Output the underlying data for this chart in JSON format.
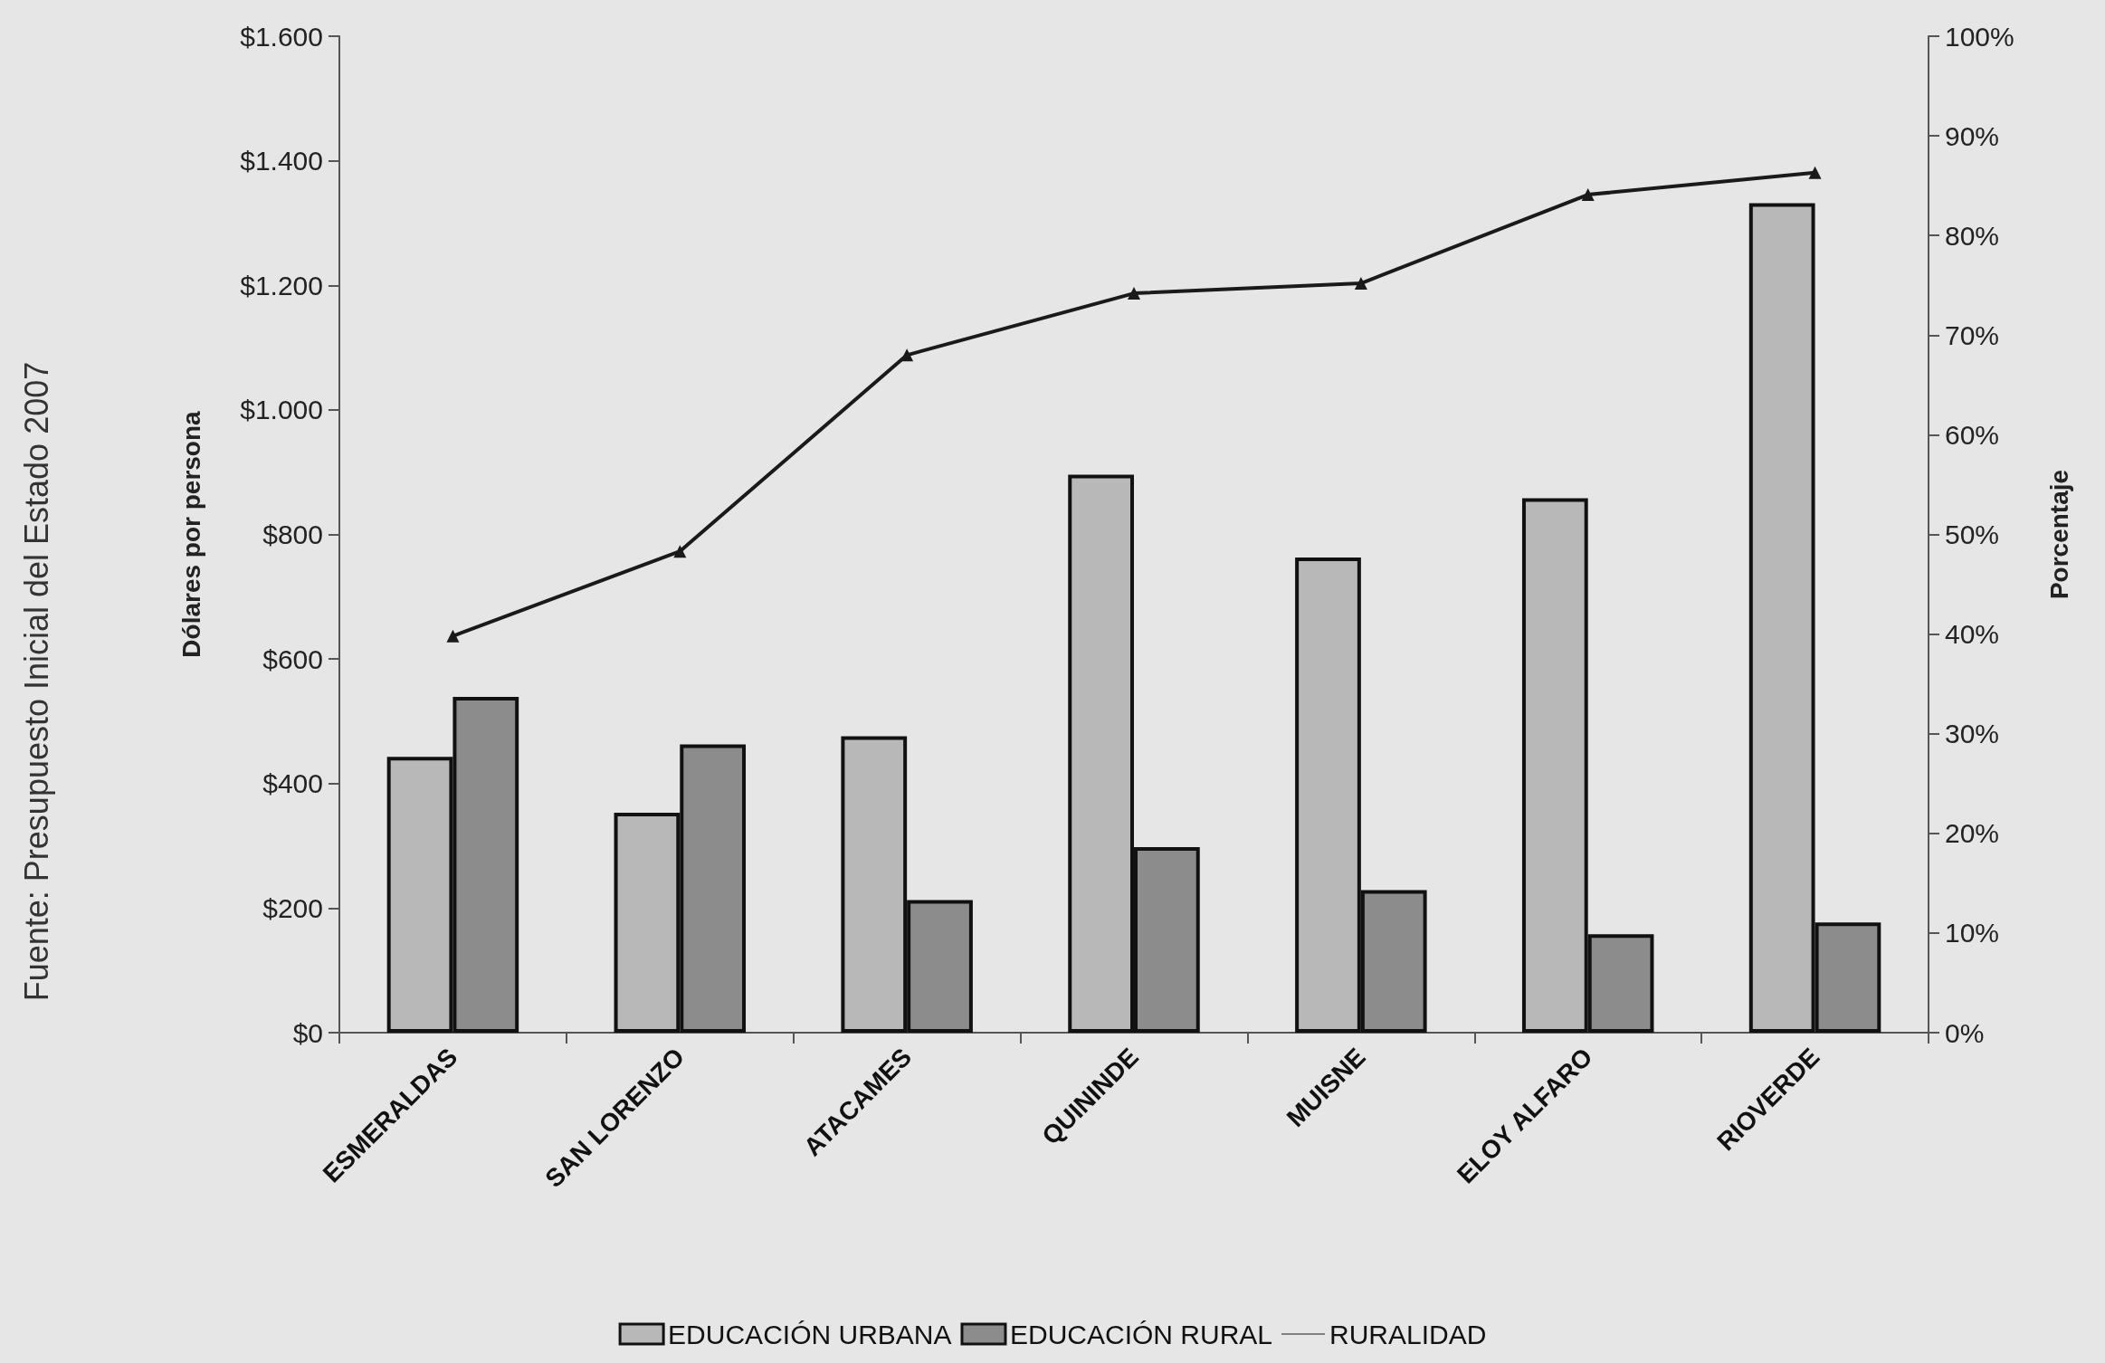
{
  "chart_data": {
    "type": "bar",
    "categories": [
      "ESMERALDAS",
      "SAN LORENZO",
      "ATACAMES",
      "QUININDE",
      "MUISNE",
      "ELOY ALFARO",
      "RIOVERDE"
    ],
    "series": [
      {
        "name": "EDUCACIÓN URBANA",
        "color": "#b8b8b8",
        "values": [
          443,
          353,
          476,
          896,
          763,
          858,
          1332
        ]
      },
      {
        "name": "EDUCACIÓN RURAL",
        "color": "#8c8c8c",
        "values": [
          539,
          463,
          213,
          298,
          229,
          158,
          177
        ]
      },
      {
        "name": "RURALIDAD",
        "type": "line",
        "axis": "y2",
        "color": "#1a1a1a",
        "marker": "triangle",
        "values": [
          39.8,
          48.3,
          68.0,
          74.2,
          75.2,
          84.1,
          86.3
        ]
      }
    ],
    "ylabel": "Dólares por persona",
    "y2label": "Porcentaje",
    "ylim": [
      0,
      1600
    ],
    "yticks": [
      {
        "value": 0,
        "label": "$0"
      },
      {
        "value": 200,
        "label": "$200"
      },
      {
        "value": 400,
        "label": "$400"
      },
      {
        "value": 600,
        "label": "$600"
      },
      {
        "value": 800,
        "label": "$800"
      },
      {
        "value": 1000,
        "label": "$1.000"
      },
      {
        "value": 1200,
        "label": "$1.200"
      },
      {
        "value": 1400,
        "label": "$1.400"
      },
      {
        "value": 1600,
        "label": "$1.600"
      }
    ],
    "y2lim": [
      0,
      100
    ],
    "y2ticks": [
      {
        "value": 0,
        "label": "0%"
      },
      {
        "value": 10,
        "label": "10%"
      },
      {
        "value": 20,
        "label": "20%"
      },
      {
        "value": 30,
        "label": "30%"
      },
      {
        "value": 40,
        "label": "40%"
      },
      {
        "value": 50,
        "label": "50%"
      },
      {
        "value": 60,
        "label": "60%"
      },
      {
        "value": 70,
        "label": "70%"
      },
      {
        "value": 80,
        "label": "80%"
      },
      {
        "value": 90,
        "label": "90%"
      },
      {
        "value": 100,
        "label": "100%"
      }
    ],
    "annotations": [
      "Fuente: Presupuesto Inicial del Estado 2007"
    ],
    "legend": "bottom",
    "grid": false
  }
}
